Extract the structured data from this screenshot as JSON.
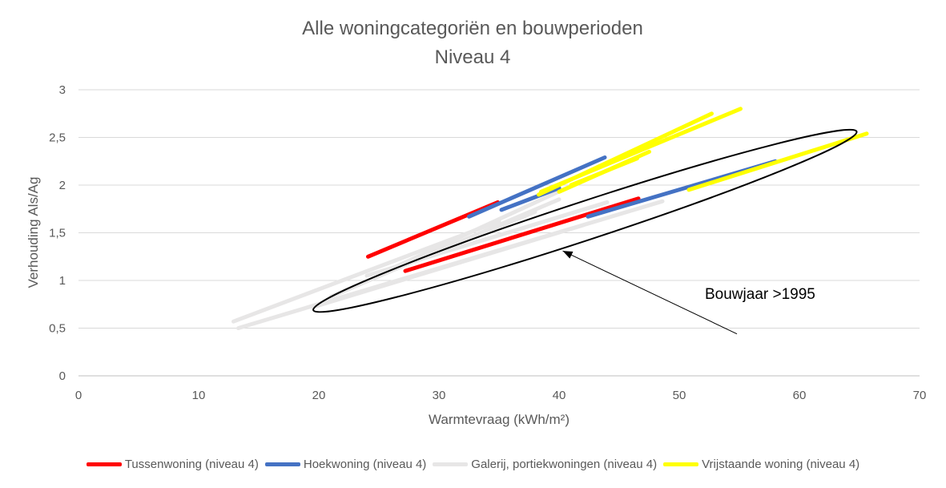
{
  "chart_data": {
    "type": "line",
    "title": "Alle woningcategoriën en bouwperioden",
    "subtitle": "Niveau 4",
    "xlabel": "Warmtevraag (kWh/m²)",
    "ylabel": "Verhouding Als/Ag",
    "xlim": [
      0,
      70
    ],
    "ylim": [
      0,
      3
    ],
    "x_ticks": [
      "0",
      "10",
      "20",
      "30",
      "40",
      "50",
      "60",
      "70"
    ],
    "y_ticks": [
      "0",
      "0,5",
      "1",
      "1,5",
      "2",
      "2,5",
      "3"
    ],
    "grid": true,
    "legend_position": "bottom",
    "series": [
      {
        "name": "Galerij, portiekwoningen (niveau 4)",
        "color": "#e7e6e6",
        "segments": [
          [
            [
              12.9,
              0.57
            ],
            [
              35.0,
              1.62
            ]
          ],
          [
            [
              13.3,
              0.5
            ],
            [
              48.6,
              1.83
            ]
          ],
          [
            [
              19.5,
              0.72
            ],
            [
              42.0,
              1.58
            ]
          ],
          [
            [
              21.0,
              0.83
            ],
            [
              40.0,
              1.85
            ]
          ],
          [
            [
              24.0,
              1.05
            ],
            [
              44.0,
              1.82
            ]
          ],
          [
            [
              26.0,
              1.12
            ],
            [
              42.0,
              2.05
            ]
          ],
          [
            [
              28.0,
              1.2
            ],
            [
              38.0,
              1.72
            ]
          ]
        ]
      },
      {
        "name": "Tussenwoning (niveau 4)",
        "color": "#ff0000",
        "segments": [
          [
            [
              24.1,
              1.25
            ],
            [
              34.9,
              1.82
            ]
          ],
          [
            [
              27.2,
              1.1
            ],
            [
              46.6,
              1.86
            ]
          ]
        ]
      },
      {
        "name": "Hoekwoning (niveau 4)",
        "color": "#4472c4",
        "segments": [
          [
            [
              32.5,
              1.67
            ],
            [
              43.8,
              2.29
            ]
          ],
          [
            [
              35.2,
              1.74
            ],
            [
              40.0,
              1.97
            ]
          ],
          [
            [
              42.4,
              1.67
            ],
            [
              58.0,
              2.25
            ]
          ]
        ]
      },
      {
        "name": "Vrijstaande woning (niveau 4)",
        "color": "#ffff00",
        "segments": [
          [
            [
              38.3,
              1.9
            ],
            [
              52.7,
              2.75
            ]
          ],
          [
            [
              38.5,
              1.93
            ],
            [
              55.1,
              2.8
            ]
          ],
          [
            [
              40.0,
              1.93
            ],
            [
              47.5,
              2.35
            ]
          ],
          [
            [
              41.0,
              2.0
            ],
            [
              46.5,
              2.28
            ]
          ],
          [
            [
              50.8,
              1.95
            ],
            [
              65.6,
              2.54
            ]
          ]
        ]
      }
    ],
    "annotation": {
      "text": "Bouwjaar >1995",
      "ellipse_through": [
        [
          20.3,
          0.72
        ],
        [
          64.0,
          2.53
        ]
      ],
      "arrow_from": [
        54.8,
        0.44
      ],
      "arrow_to": [
        40.3,
        1.31
      ]
    }
  }
}
